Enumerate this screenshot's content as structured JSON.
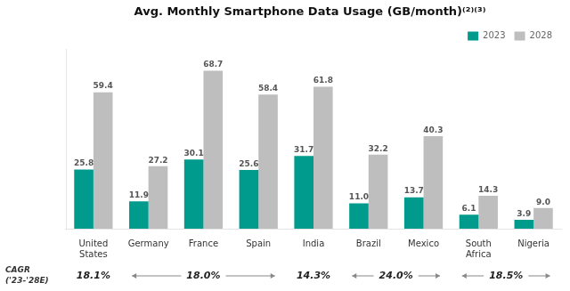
{
  "chart_data": {
    "type": "bar",
    "title": "Avg. Monthly Smartphone Data Usage (GB/month)⁽²⁾⁽³⁾",
    "categories": [
      "United\nStates",
      "Germany",
      "France",
      "Spain",
      "India",
      "Brazil",
      "Mexico",
      "South\nAfrica",
      "Nigeria"
    ],
    "series": [
      {
        "name": "2023",
        "color": "#009B8D",
        "values": [
          25.8,
          11.9,
          30.1,
          25.6,
          31.7,
          11.0,
          13.7,
          6.1,
          3.9
        ],
        "value_labels": [
          "25.8",
          "11.9",
          "30.1",
          "25.6",
          "31.7",
          "11.0",
          "13.7",
          "6.1",
          "3.9"
        ]
      },
      {
        "name": "2028",
        "color": "#BEBEBE",
        "values": [
          59.4,
          27.2,
          68.7,
          58.4,
          61.8,
          32.2,
          40.3,
          14.3,
          9.0
        ],
        "value_labels": [
          "59.4",
          "27.2",
          "68.7",
          "58.4",
          "61.8",
          "32.2",
          "40.3",
          "14.3",
          "9.0"
        ]
      }
    ],
    "ylim": [
      0,
      78
    ],
    "yticks": [],
    "grid": false,
    "legend": "upper right",
    "data_labels": true,
    "tick_labels": "x",
    "annotations": {
      "label": [
        "CAGR",
        "('23-'28E)"
      ],
      "items": [
        {
          "text": "18.1%",
          "categories": [
            "United\nStates"
          ]
        },
        {
          "text": "18.0%",
          "categories": [
            "Germany",
            "France",
            "Spain"
          ]
        },
        {
          "text": "14.3%",
          "categories": [
            "India"
          ]
        },
        {
          "text": "24.0%",
          "categories": [
            "Brazil",
            "Mexico"
          ]
        },
        {
          "text": "18.5%",
          "categories": [
            "South\nAfrica",
            "Nigeria"
          ]
        }
      ]
    }
  }
}
